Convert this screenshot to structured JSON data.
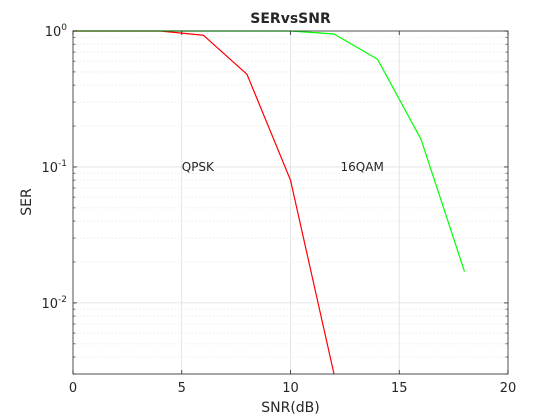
{
  "chart_data": {
    "type": "line",
    "title": "SERvsSNR",
    "xlabel": "SNR(dB)",
    "ylabel": "SER",
    "xlim": [
      0,
      20
    ],
    "ylim": [
      0.003,
      1
    ],
    "yscale": "log",
    "grid": true,
    "xticks": [
      0,
      5,
      10,
      15,
      20
    ],
    "xtick_labels": [
      "0",
      "5",
      "10",
      "15",
      "20"
    ],
    "yticks": [
      {
        "value": 1,
        "base": "10",
        "exp": "0"
      },
      {
        "value": 0.1,
        "base": "10",
        "exp": "-1"
      },
      {
        "value": 0.01,
        "base": "10",
        "exp": "-2"
      }
    ],
    "series": [
      {
        "color": "#ff0000",
        "x": [
          0,
          2,
          4,
          6,
          8,
          10,
          12
        ],
        "y": [
          1,
          1,
          1,
          0.93,
          0.48,
          0.08,
          0.003
        ]
      },
      {
        "color": "#00ff00",
        "x": [
          0,
          2,
          4,
          6,
          8,
          10,
          12,
          14,
          16,
          18
        ],
        "y": [
          1,
          1,
          1,
          1,
          1,
          1,
          0.95,
          0.62,
          0.16,
          0.017
        ]
      }
    ],
    "annotations": [
      {
        "text": "QPSK",
        "x": 5,
        "y": 0.1
      },
      {
        "text": "16QAM",
        "x": 12.3,
        "y": 0.1
      }
    ]
  }
}
